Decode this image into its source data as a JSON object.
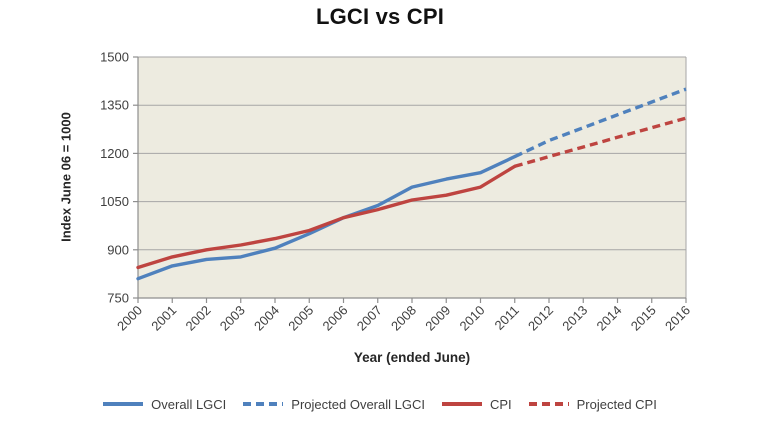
{
  "title": "LGCI vs CPI",
  "y_axis": {
    "title": "Index June 06 = 1000"
  },
  "x_axis": {
    "title": "Year (ended June)"
  },
  "legend": {
    "items": [
      {
        "label": "Overall LGCI",
        "color": "#4F81BD",
        "style": "solid"
      },
      {
        "label": "Projected Overall LGCI",
        "color": "#4F81BD",
        "style": "dashed"
      },
      {
        "label": "CPI",
        "color": "#BE4440",
        "style": "solid"
      },
      {
        "label": "Projected CPI",
        "color": "#BE4440",
        "style": "dashed"
      }
    ]
  },
  "colors": {
    "lgci_blue": "#4F81BD",
    "cpi_red": "#BE4440",
    "plot_background": "#EDEBE0",
    "gridline": "#A6A6A6",
    "axis_line": "#8E8E8E",
    "tick_text": "#3F3F3F",
    "title_text": "#111111"
  },
  "chart_data": {
    "type": "line",
    "title": "LGCI vs CPI",
    "xlabel": "Year (ended June)",
    "ylabel": "Index June 06 = 1000",
    "x_ticks": [
      2000,
      2001,
      2002,
      2003,
      2004,
      2005,
      2006,
      2007,
      2008,
      2009,
      2010,
      2011,
      2012,
      2013,
      2014,
      2015,
      2016
    ],
    "xlim": [
      2000,
      2016
    ],
    "ylim": [
      750,
      1500
    ],
    "y_ticks": [
      750,
      900,
      1050,
      1200,
      1350,
      1500
    ],
    "grid": true,
    "legend_position": "bottom",
    "series": [
      {
        "name": "Overall LGCI",
        "color": "#4F81BD",
        "style": "solid",
        "x": [
          2000,
          2001,
          2002,
          2003,
          2004,
          2005,
          2006,
          2007,
          2008,
          2009,
          2010,
          2011
        ],
        "values": [
          810,
          850,
          870,
          878,
          905,
          950,
          1000,
          1038,
          1095,
          1120,
          1140,
          1190
        ]
      },
      {
        "name": "Projected Overall LGCI",
        "color": "#4F81BD",
        "style": "dashed",
        "x": [
          2011,
          2012,
          2013,
          2014,
          2015,
          2016
        ],
        "values": [
          1190,
          1240,
          1280,
          1320,
          1360,
          1400
        ]
      },
      {
        "name": "CPI",
        "color": "#BE4440",
        "style": "solid",
        "x": [
          2000,
          2001,
          2002,
          2003,
          2004,
          2005,
          2006,
          2007,
          2008,
          2009,
          2010,
          2011
        ],
        "values": [
          845,
          878,
          900,
          915,
          935,
          960,
          1000,
          1025,
          1055,
          1070,
          1095,
          1160
        ]
      },
      {
        "name": "Projected CPI",
        "color": "#BE4440",
        "style": "dashed",
        "x": [
          2011,
          2012,
          2013,
          2014,
          2015,
          2016
        ],
        "values": [
          1160,
          1190,
          1220,
          1250,
          1280,
          1310
        ]
      }
    ]
  }
}
